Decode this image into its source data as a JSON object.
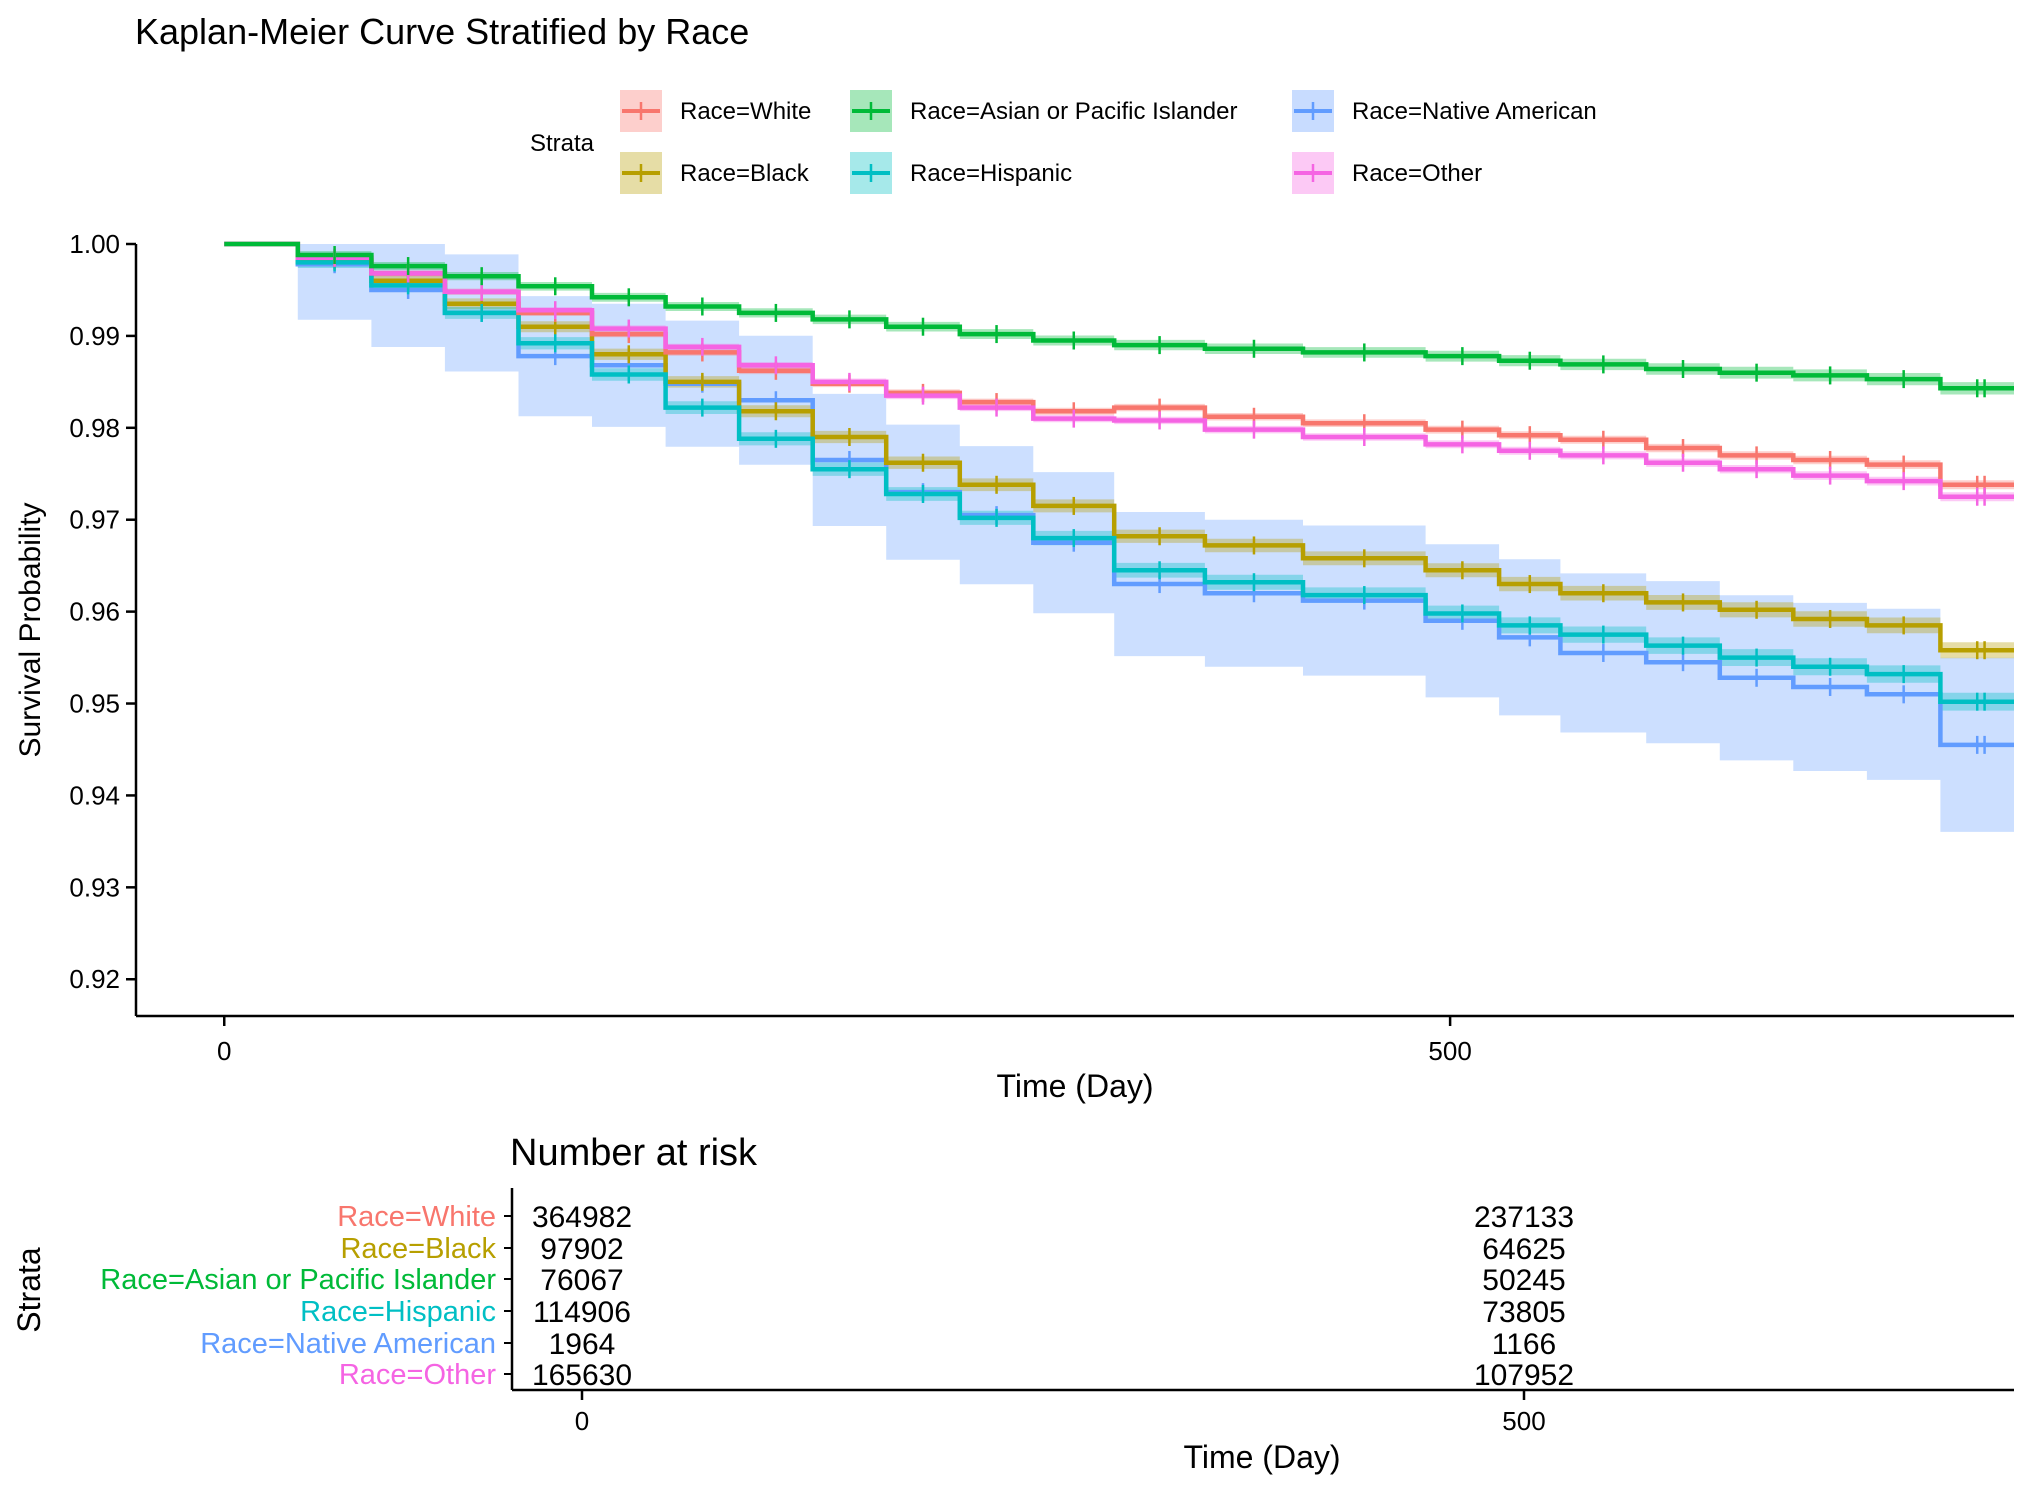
{
  "chart_data": [
    {
      "type": "line",
      "subtype": "kaplan-meier",
      "title": "Kaplan-Meier Curve Stratified by Race",
      "xlabel": "Time (Day)",
      "ylabel": "Survival Probability",
      "xlim": [
        -36,
        730
      ],
      "ylim": [
        0.916,
        1.0
      ],
      "xticks": [
        0,
        500
      ],
      "yticks": [
        0.92,
        0.93,
        0.94,
        0.95,
        0.96,
        0.97,
        0.98,
        0.99,
        1.0
      ],
      "ytick_labels": [
        "0.92",
        "0.93",
        "0.94",
        "0.95",
        "0.96",
        "0.97",
        "0.98",
        "0.99",
        "1.00"
      ],
      "xtick_labels": [
        "0",
        "500"
      ],
      "grid": false,
      "legend": {
        "title": "Strata",
        "position": "top",
        "entries": [
          "Race=White",
          "Race=Black",
          "Race=Asian or Pacific Islander",
          "Race=Hispanic",
          "Race=Native American",
          "Race=Other"
        ]
      },
      "series": [
        {
          "name": "Race=White",
          "color": "#F8766D",
          "x": [
            0,
            30,
            60,
            90,
            120,
            150,
            180,
            210,
            240,
            270,
            300,
            330,
            363,
            400,
            440,
            490,
            520,
            545,
            580,
            610,
            640,
            670,
            700,
            730
          ],
          "y": [
            1.0,
            0.9985,
            0.9968,
            0.9948,
            0.9925,
            0.9902,
            0.9882,
            0.9862,
            0.9848,
            0.9838,
            0.9828,
            0.9818,
            0.9822,
            0.9812,
            0.9805,
            0.9798,
            0.9792,
            0.9787,
            0.9778,
            0.977,
            0.9765,
            0.976,
            0.9738,
            0.9738
          ],
          "ci_width": 0.0005
        },
        {
          "name": "Race=Black",
          "color": "#B79F00",
          "x": [
            0,
            30,
            60,
            90,
            120,
            150,
            180,
            210,
            240,
            270,
            300,
            330,
            363,
            400,
            440,
            490,
            520,
            545,
            580,
            610,
            640,
            670,
            700,
            730
          ],
          "y": [
            1.0,
            0.9982,
            0.996,
            0.9935,
            0.991,
            0.988,
            0.985,
            0.9818,
            0.979,
            0.9762,
            0.9738,
            0.9715,
            0.9682,
            0.9672,
            0.9658,
            0.9645,
            0.963,
            0.962,
            0.961,
            0.9602,
            0.9592,
            0.9585,
            0.9558,
            0.9558
          ],
          "ci_width": 0.0009
        },
        {
          "name": "Race=Asian or Pacific Islander",
          "color": "#00BA38",
          "x": [
            0,
            30,
            60,
            90,
            120,
            150,
            180,
            210,
            240,
            270,
            300,
            330,
            363,
            400,
            440,
            490,
            520,
            545,
            580,
            610,
            640,
            670,
            700,
            730
          ],
          "y": [
            1.0,
            0.9988,
            0.9976,
            0.9965,
            0.9954,
            0.9942,
            0.9932,
            0.9925,
            0.9918,
            0.991,
            0.9902,
            0.9895,
            0.989,
            0.9886,
            0.9882,
            0.9878,
            0.9873,
            0.9869,
            0.9864,
            0.986,
            0.9857,
            0.9853,
            0.9843,
            0.9843
          ],
          "ci_width": 0.0007
        },
        {
          "name": "Race=Hispanic",
          "color": "#00BFC4",
          "x": [
            0,
            30,
            60,
            90,
            120,
            150,
            180,
            210,
            240,
            270,
            300,
            330,
            363,
            400,
            440,
            490,
            520,
            545,
            580,
            610,
            640,
            670,
            700,
            730
          ],
          "y": [
            1.0,
            0.998,
            0.9955,
            0.9925,
            0.9892,
            0.9858,
            0.9822,
            0.9788,
            0.9755,
            0.9728,
            0.9702,
            0.968,
            0.9645,
            0.9632,
            0.9618,
            0.9598,
            0.9585,
            0.9575,
            0.9563,
            0.955,
            0.954,
            0.9532,
            0.9502,
            0.9502
          ],
          "ci_width": 0.001
        },
        {
          "name": "Race=Native American",
          "color": "#619CFF",
          "x": [
            0,
            30,
            60,
            90,
            120,
            150,
            180,
            210,
            240,
            270,
            300,
            330,
            363,
            400,
            440,
            490,
            520,
            545,
            580,
            610,
            640,
            670,
            700,
            730
          ],
          "y": [
            1.0,
            0.9978,
            0.995,
            0.9925,
            0.9878,
            0.9868,
            0.9848,
            0.983,
            0.9765,
            0.973,
            0.9705,
            0.9675,
            0.963,
            0.962,
            0.9612,
            0.959,
            0.9572,
            0.9555,
            0.9545,
            0.9528,
            0.9518,
            0.951,
            0.9455,
            0.9455
          ],
          "ci_width": 0.007
        },
        {
          "name": "Race=Other",
          "color": "#F564E3",
          "x": [
            0,
            30,
            60,
            90,
            120,
            150,
            180,
            210,
            240,
            270,
            300,
            330,
            363,
            400,
            440,
            490,
            520,
            545,
            580,
            610,
            640,
            670,
            700,
            730
          ],
          "y": [
            1.0,
            0.9985,
            0.9968,
            0.9948,
            0.9928,
            0.9908,
            0.9888,
            0.9868,
            0.985,
            0.9835,
            0.9822,
            0.981,
            0.9808,
            0.9798,
            0.979,
            0.9782,
            0.9775,
            0.977,
            0.9762,
            0.9755,
            0.9748,
            0.9742,
            0.9725,
            0.9725
          ],
          "ci_width": 0.0005
        }
      ]
    },
    {
      "type": "table",
      "title": "Number at risk",
      "xlabel": "Time (Day)",
      "ylabel": "Strata",
      "xticks": [
        0,
        500
      ],
      "xtick_labels": [
        "0",
        "500"
      ],
      "rows": [
        {
          "name": "Race=White",
          "color": "#F8766D",
          "values": [
            "364982",
            "237133"
          ]
        },
        {
          "name": "Race=Black",
          "color": "#B79F00",
          "values": [
            "97902",
            "64625"
          ]
        },
        {
          "name": "Race=Asian or Pacific Islander",
          "color": "#00BA38",
          "values": [
            "76067",
            "50245"
          ]
        },
        {
          "name": "Race=Hispanic",
          "color": "#00BFC4",
          "values": [
            "114906",
            "73805"
          ]
        },
        {
          "name": "Race=Native American",
          "color": "#619CFF",
          "values": [
            "1964",
            "1166"
          ]
        },
        {
          "name": "Race=Other",
          "color": "#F564E3",
          "values": [
            "165630",
            "107952"
          ]
        }
      ]
    }
  ]
}
